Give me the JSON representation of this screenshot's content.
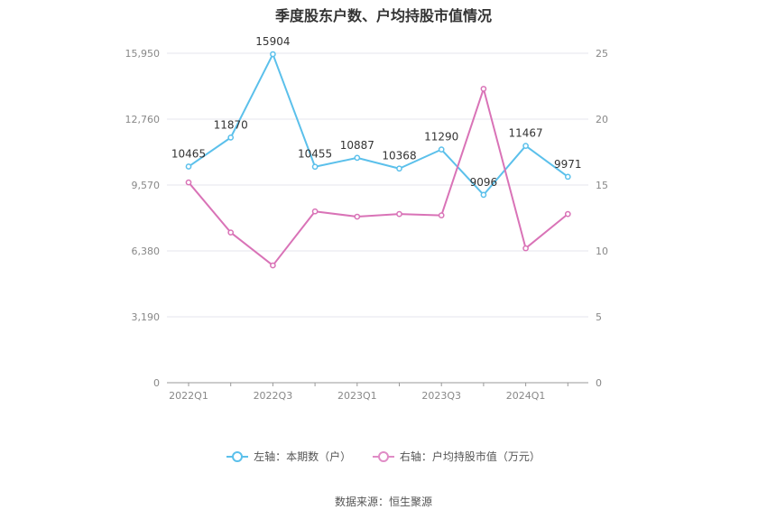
{
  "title": "季度股东户数、户均持股市值情况",
  "source": "数据来源：恒生聚源",
  "colors": {
    "left": "#5bc0eb",
    "right": "#d973b7",
    "grid": "#e6e6ee",
    "axis": "#999999",
    "tick_text": "#888888"
  },
  "legend": [
    {
      "label": "左轴：本期数（户）",
      "color": "#5bc0eb"
    },
    {
      "label": "右轴：户均持股市值（万元）",
      "color": "#e08cc6"
    }
  ],
  "chart_data": {
    "type": "line",
    "title": "季度股东户数、户均持股市值情况",
    "x": [
      "2022Q1",
      "2022Q2",
      "2022Q3",
      "2022Q4",
      "2023Q1",
      "2023Q2",
      "2023Q3",
      "2023Q4",
      "2024Q1",
      "2024Q2"
    ],
    "x_tick_labels": [
      "2022Q1",
      "2022Q3",
      "2023Q1",
      "2023Q3",
      "2024Q1"
    ],
    "y_left_ticks": [
      "0",
      "3,190",
      "6,380",
      "9,570",
      "12,760",
      "15,950"
    ],
    "y_right_ticks": [
      "0",
      "5",
      "10",
      "15",
      "20",
      "25"
    ],
    "y_left_lim": [
      0,
      15950
    ],
    "y_right_lim": [
      0,
      25
    ],
    "series": [
      {
        "name": "左轴：本期数（户）",
        "axis": "left",
        "values": [
          10465,
          11870,
          15904,
          10455,
          10887,
          10368,
          11290,
          9096,
          11467,
          9971
        ],
        "labels": [
          "10465",
          "11870",
          "15904",
          "10455",
          "10887",
          "10368",
          "11290",
          "9096",
          "11467",
          "9971"
        ]
      },
      {
        "name": "右轴：户均持股市值（万元）",
        "axis": "right",
        "values": [
          15.2,
          11.4,
          8.9,
          13.0,
          12.6,
          12.8,
          12.7,
          22.3,
          10.2,
          12.8
        ]
      }
    ],
    "grid": true,
    "legend_position": "bottom"
  }
}
